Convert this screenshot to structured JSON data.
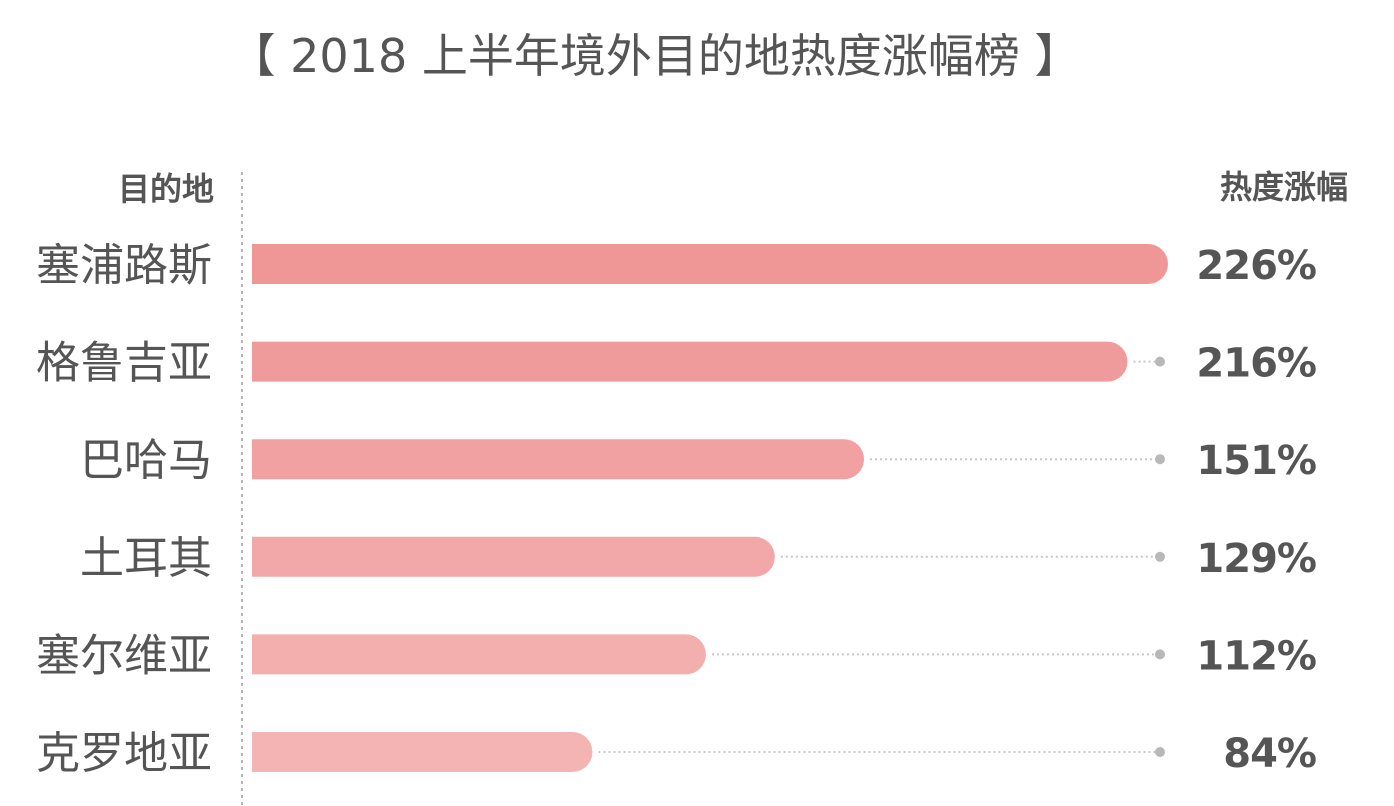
{
  "chart_data": {
    "type": "bar",
    "orientation": "horizontal",
    "title": "【 2018 上半年境外目的地热度涨幅榜 】",
    "category_header": "目的地",
    "value_header": "热度涨幅",
    "categories": [
      "塞浦路斯",
      "格鲁吉亚",
      "巴哈马",
      "土耳其",
      "塞尔维亚",
      "克罗地亚"
    ],
    "values": [
      226,
      216,
      151,
      129,
      112,
      84
    ],
    "value_labels": [
      "226%",
      "216%",
      "151%",
      "129%",
      "112%",
      "84%"
    ],
    "unit": "%",
    "xlim": [
      0,
      226
    ],
    "bar_colors": [
      "#ef9696",
      "#f09b9b",
      "#f1a1a1",
      "#f2a8a8",
      "#f3aeae",
      "#f4b4b4"
    ],
    "leader_color": "#c8c8c8",
    "grid": false,
    "legend": "none"
  }
}
